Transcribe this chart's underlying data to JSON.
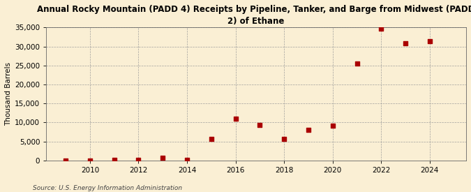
{
  "title": "Annual Rocky Mountain (PADD 4) Receipts by Pipeline, Tanker, and Barge from Midwest (PADD\n2) of Ethane",
  "ylabel": "Thousand Barrels",
  "source": "Source: U.S. Energy Information Administration",
  "background_color": "#faefd4",
  "plot_background_color": "#faefd4",
  "marker_color": "#aa0000",
  "years": [
    2009,
    2010,
    2011,
    2012,
    2013,
    2014,
    2015,
    2016,
    2017,
    2018,
    2019,
    2020,
    2021,
    2022,
    2023,
    2024
  ],
  "values": [
    20,
    30,
    130,
    70,
    750,
    130,
    5700,
    11000,
    9300,
    5700,
    8100,
    9200,
    25500,
    34800,
    30900,
    31500
  ],
  "ylim": [
    0,
    35000
  ],
  "yticks": [
    0,
    5000,
    10000,
    15000,
    20000,
    25000,
    30000,
    35000
  ],
  "xlim": [
    2008.2,
    2025.5
  ],
  "xticks": [
    2010,
    2012,
    2014,
    2016,
    2018,
    2020,
    2022,
    2024
  ],
  "title_fontsize": 8.5,
  "ylabel_fontsize": 7.5,
  "tick_fontsize": 7.5,
  "source_fontsize": 6.5,
  "marker_size": 18
}
